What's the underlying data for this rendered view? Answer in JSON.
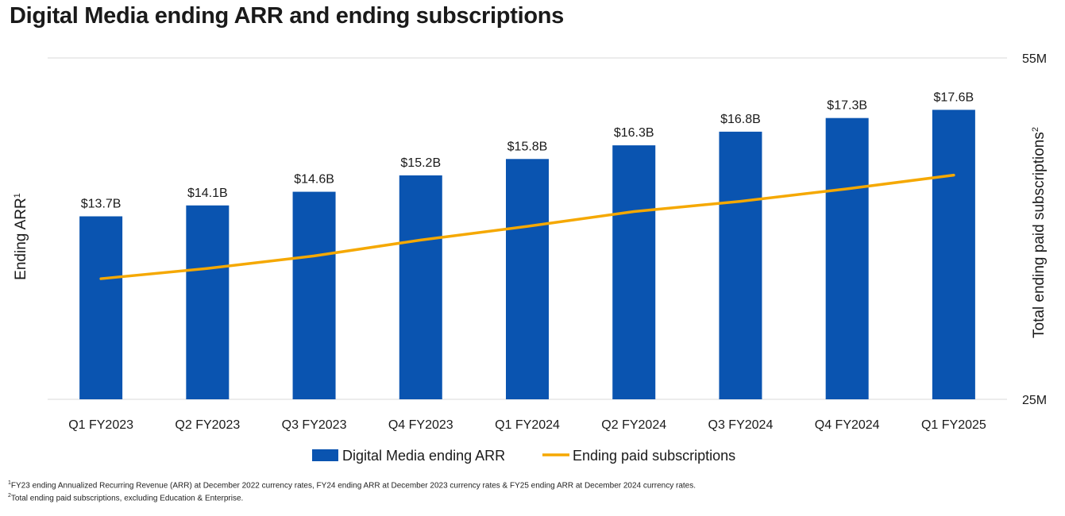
{
  "chart_data": {
    "type": "bar",
    "title": "Digital Media ending ARR and ending subscriptions",
    "categories": [
      "Q1 FY2023",
      "Q2 FY2023",
      "Q3 FY2023",
      "Q4 FY2023",
      "Q1 FY2024",
      "Q2 FY2024",
      "Q3 FY2024",
      "Q4 FY2024",
      "Q1 FY2025"
    ],
    "series": [
      {
        "name": "Digital Media ending ARR",
        "kind": "bar",
        "axis": "left",
        "values": [
          13.7,
          14.1,
          14.6,
          15.2,
          15.8,
          16.3,
          16.8,
          17.3,
          17.6
        ],
        "labels": [
          "$13.7B",
          "$14.1B",
          "$14.6B",
          "$15.2B",
          "$15.8B",
          "$16.3B",
          "$16.8B",
          "$17.3B",
          "$17.6B"
        ],
        "color": "#0a54b0"
      },
      {
        "name": "Ending paid subscriptions",
        "kind": "line",
        "axis": "right",
        "values": [
          35.6,
          36.5,
          37.6,
          39.0,
          40.2,
          41.5,
          42.4,
          43.5,
          44.7
        ],
        "color": "#f5a800"
      }
    ],
    "ylabel": "Ending ARR",
    "ylabel_sup": "1",
    "ylim": [
      7.0,
      19.5
    ],
    "y2label": "Total ending paid subscriptions",
    "y2label_sup": "2",
    "y2lim": [
      25,
      55
    ],
    "y2ticks": [
      "55M",
      "25M"
    ],
    "grid": "top line only",
    "legend_position": "bottom"
  },
  "footnotes": [
    {
      "sup": "1",
      "text": "FY23 ending Annualized Recurring Revenue (ARR) at December 2022 currency rates,  FY24 ending ARR at December 2023 currency rates & FY25 ending ARR at December 2024 currency rates."
    },
    {
      "sup": "2",
      "text": "Total ending paid subscriptions, excluding Education & Enterprise."
    }
  ]
}
